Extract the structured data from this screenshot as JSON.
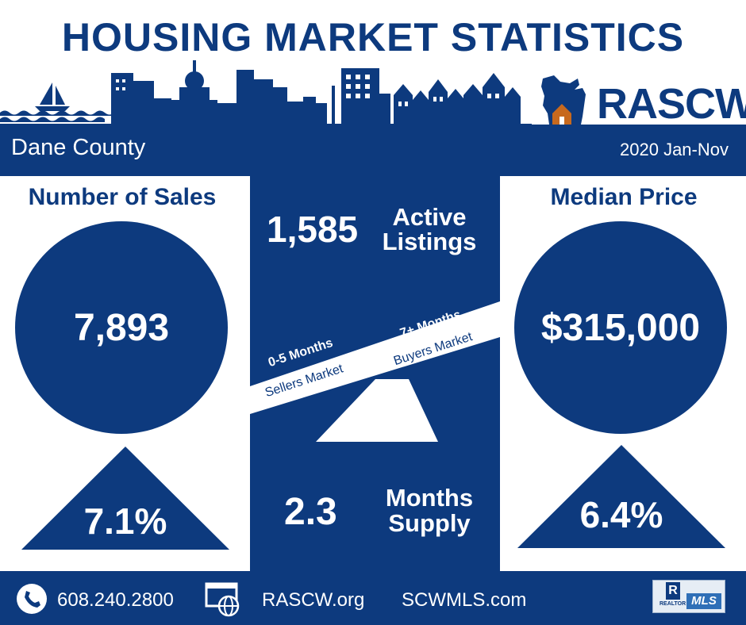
{
  "header": {
    "title": "HOUSING MARKET STATISTICS",
    "logo_text": "RASCW"
  },
  "band": {
    "county": "Dane County",
    "period": "2020 Jan-Nov"
  },
  "left": {
    "label": "Number of Sales",
    "value": "7,893",
    "change": "7.1%"
  },
  "middle": {
    "listings_value": "1,585",
    "listings_label_1": "Active",
    "listings_label_2": "Listings",
    "sellers_months": "0-5 Months",
    "sellers_label": "Sellers Market",
    "buyers_months": "7+ Months",
    "buyers_label": "Buyers Market",
    "supply_value": "2.3",
    "supply_label_1": "Months",
    "supply_label_2": "Supply"
  },
  "right": {
    "label": "Median Price",
    "value": "$315,000",
    "change": "6.4%"
  },
  "footer": {
    "phone": "608.240.2800",
    "site1": "RASCW.org",
    "site2": "SCWMLS.com",
    "mls_badge": "MLS",
    "realtor_badge": "REALTOR"
  },
  "colors": {
    "navy": "#0d3a7e",
    "white": "#ffffff",
    "house_orange": "#c7691e"
  }
}
